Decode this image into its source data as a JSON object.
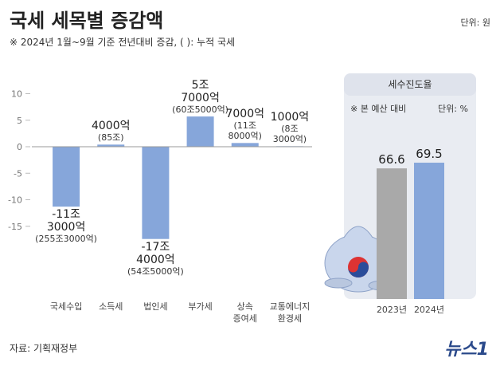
{
  "title": "국세 세목별 증감액",
  "subtitle": "※ 2024년 1월~9월 기준 전년대비 증감, (   ): 누적 국세",
  "unit": "단위: 원",
  "source": "자료: 기획재정부",
  "logo": "뉴스1",
  "chart_data": [
    {
      "type": "bar",
      "categories": [
        "국세수입",
        "소득세",
        "법인세",
        "부가세",
        "상속\n증여세",
        "교통에너지\n환경세"
      ],
      "values": [
        -11.3,
        0.4,
        -17.4,
        5.7,
        0.7,
        0.1
      ],
      "value_labels": [
        "-11조\n3000억",
        "4000억",
        "-17조\n4000억",
        "5조\n7000억",
        "7000억",
        "1000억"
      ],
      "cumulative_labels": [
        "(255조3000억)",
        "(85조)",
        "(54조5000억)",
        "(60조5000억)",
        "(11조\n8000억)",
        "(8조\n3000억)"
      ],
      "color": "#86a6da",
      "ylim": [
        -20,
        12
      ],
      "yticks": [
        10,
        5,
        0,
        -5,
        -10,
        -15
      ]
    },
    {
      "type": "bar",
      "title": "세수진도율",
      "note": "※ 본 예산 대비",
      "unit": "단위: %",
      "categories": [
        "2023년",
        "2024년"
      ],
      "values": [
        66.6,
        69.5
      ],
      "colors": [
        "#a9a9a9",
        "#86a6da"
      ],
      "ylim": [
        0,
        100
      ]
    }
  ]
}
